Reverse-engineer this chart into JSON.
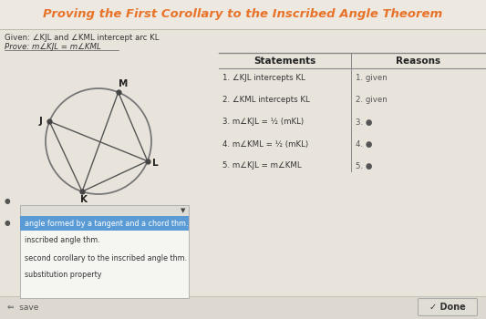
{
  "title": "Proving the First Corollary to the Inscribed Angle Theorem",
  "title_color": "#e8732a",
  "title_fontsize": 9.5,
  "bg_color": "#d6d0c8",
  "content_bg": "#e8e4dc",
  "given_text": "Given: ∠KJL and ∠KML intercept arc KL",
  "prove_text": "Prove: m∠KJL = m∠KML",
  "statements_header": "Statements",
  "reasons_header": "Reasons",
  "statements": [
    "1. ∠KJL intercepts KL",
    "2. ∠KML intercepts KL",
    "3. m∠KJL = ½ (mKL)",
    "4. m∠KML = ½ (mKL)",
    "5. m∠KJL = m∠KML"
  ],
  "reasons": [
    "1. given",
    "2. given",
    "3. ●",
    "4. ●",
    "5. ●"
  ],
  "dropdown_items": [
    "angle formed by a tangent and a chord thm.",
    "inscribed angle thm.",
    "second corollary to the inscribed angle thm.",
    "substitution property"
  ],
  "dropdown_selected_color": "#5b9bd5",
  "circle_color": "#777777",
  "line_color": "#555555",
  "point_color": "#444444",
  "done_text": "✓ Done"
}
